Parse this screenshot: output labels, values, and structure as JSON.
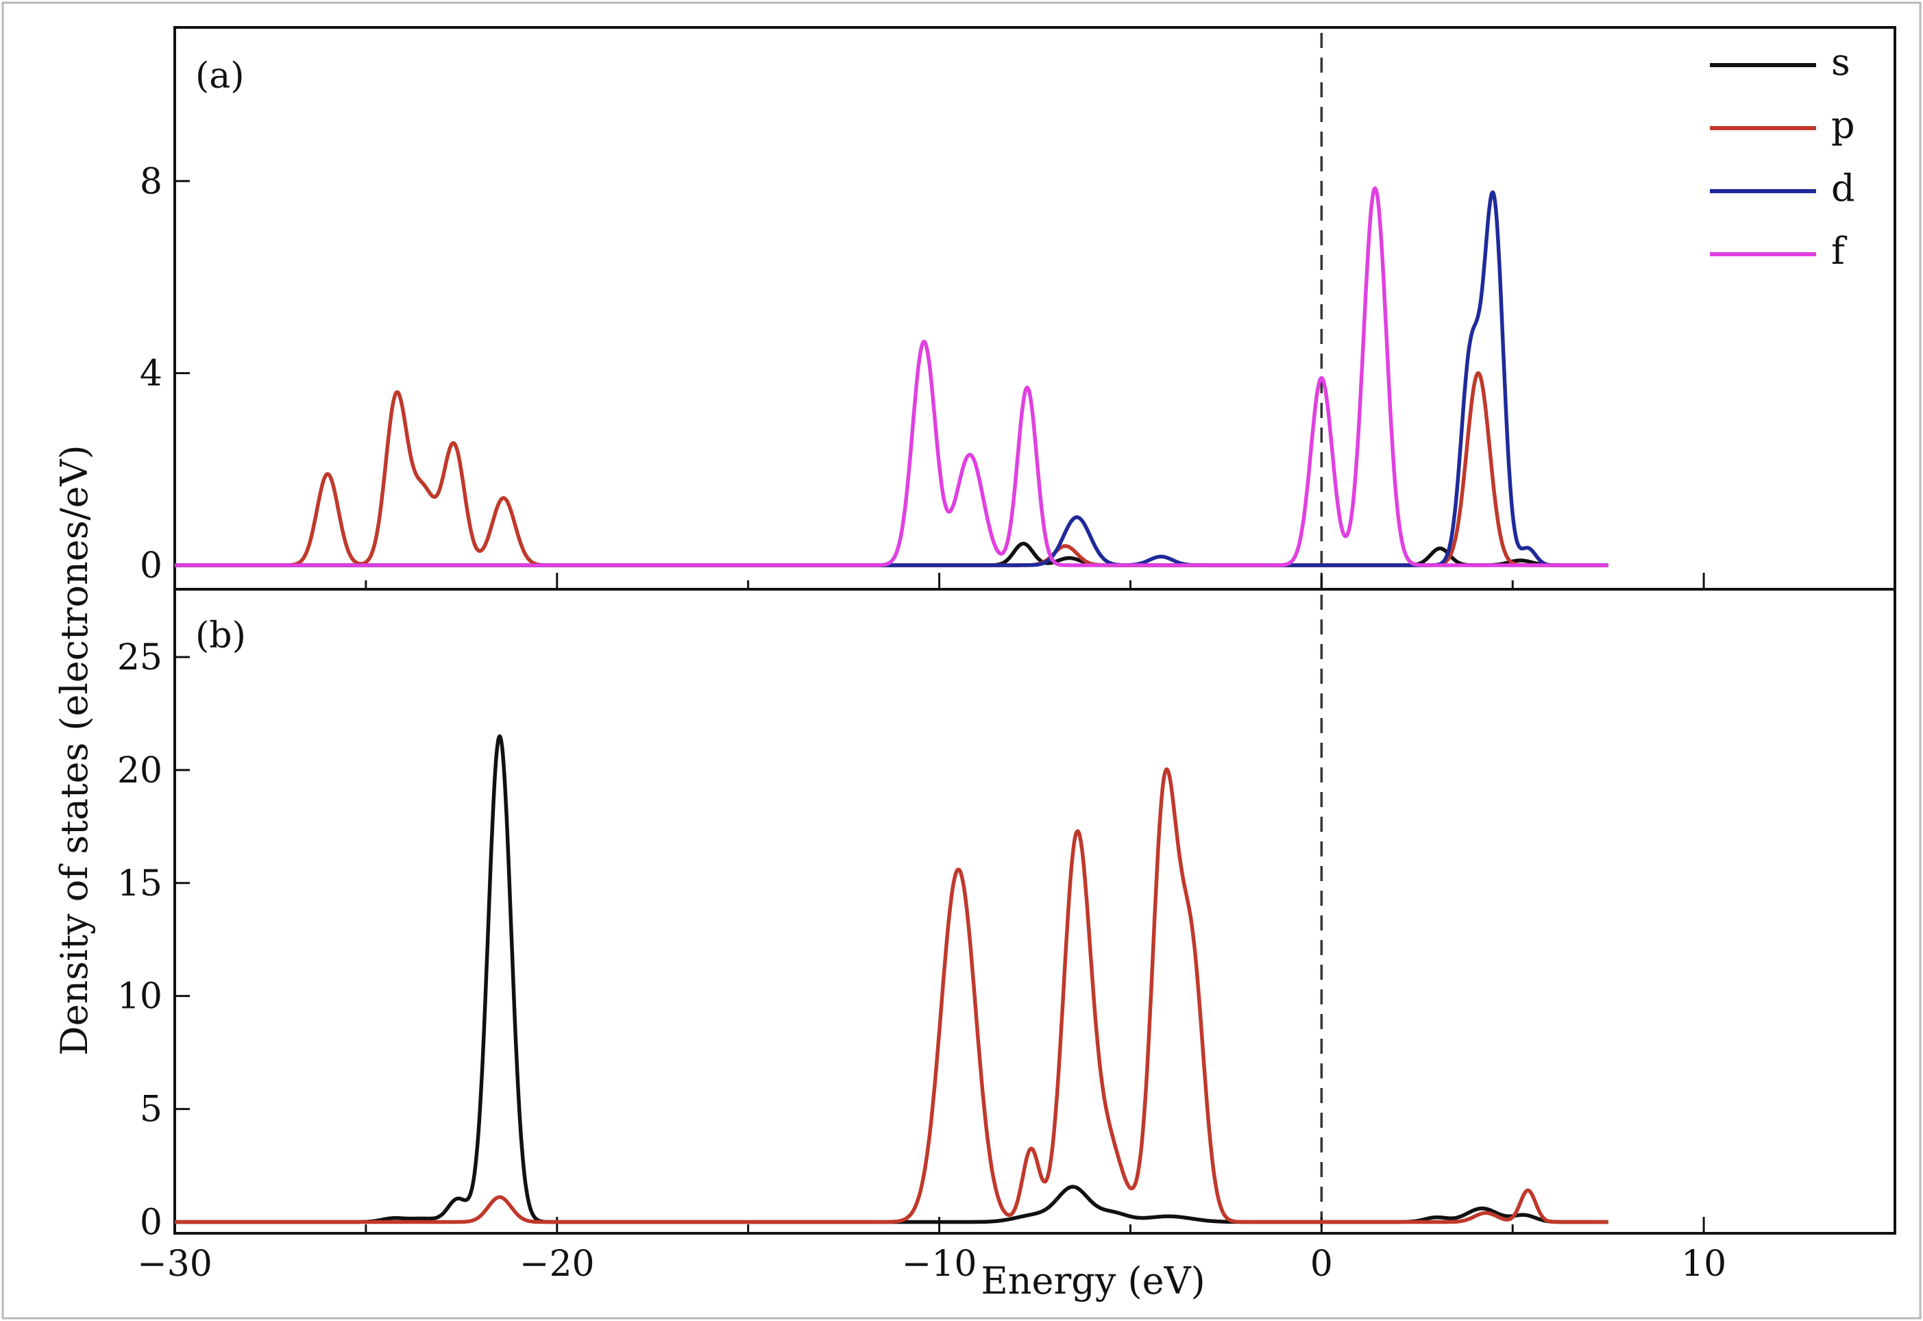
{
  "chart_data": [
    {
      "panel": "(a)",
      "type": "line",
      "xlim": [
        -30,
        15
      ],
      "ylim": [
        -0.5,
        11.2
      ],
      "xticks": [
        -30,
        -20,
        -10,
        0,
        10
      ],
      "yticks": [
        0,
        4,
        8
      ],
      "ytick_labels": [
        "0",
        "4",
        "8"
      ],
      "fermi_level": 0,
      "legend": {
        "placement": "top-right",
        "entries": [
          "s",
          "p",
          "d",
          "f"
        ]
      },
      "series": [
        {
          "name": "s",
          "color": "#111111",
          "peaks": [
            {
              "x": -7.8,
              "y": 0.45,
              "w": 0.25
            },
            {
              "x": -6.6,
              "y": 0.15,
              "w": 0.3
            },
            {
              "x": 3.1,
              "y": 0.35,
              "w": 0.25
            },
            {
              "x": 5.2,
              "y": 0.1,
              "w": 0.3
            }
          ]
        },
        {
          "name": "p",
          "color": "#c0392b",
          "peaks": [
            {
              "x": -26.0,
              "y": 1.9,
              "w": 0.28
            },
            {
              "x": -24.2,
              "y": 3.5,
              "w": 0.28
            },
            {
              "x": -23.5,
              "y": 1.5,
              "w": 0.3
            },
            {
              "x": -22.7,
              "y": 2.5,
              "w": 0.28
            },
            {
              "x": -21.4,
              "y": 1.4,
              "w": 0.3
            },
            {
              "x": -6.7,
              "y": 0.4,
              "w": 0.3
            },
            {
              "x": 4.1,
              "y": 4.0,
              "w": 0.3
            }
          ]
        },
        {
          "name": "d",
          "color": "#1f2a9a",
          "peaks": [
            {
              "x": -6.4,
              "y": 1.0,
              "w": 0.35
            },
            {
              "x": -4.2,
              "y": 0.18,
              "w": 0.3
            },
            {
              "x": 3.9,
              "y": 4.3,
              "w": 0.25
            },
            {
              "x": 4.5,
              "y": 7.5,
              "w": 0.25
            },
            {
              "x": 5.4,
              "y": 0.35,
              "w": 0.2
            }
          ]
        },
        {
          "name": "f",
          "color": "#e040e0",
          "peaks": [
            {
              "x": -10.4,
              "y": 4.65,
              "w": 0.3
            },
            {
              "x": -9.2,
              "y": 2.3,
              "w": 0.35
            },
            {
              "x": -7.7,
              "y": 3.7,
              "w": 0.25
            },
            {
              "x": 0.0,
              "y": 3.9,
              "w": 0.28
            },
            {
              "x": 1.4,
              "y": 7.85,
              "w": 0.3
            }
          ]
        }
      ]
    },
    {
      "panel": "(b)",
      "type": "line",
      "xlim": [
        -30,
        15
      ],
      "ylim": [
        -0.5,
        28
      ],
      "xticks": [
        -30,
        -20,
        -10,
        0,
        10
      ],
      "xtick_labels": [
        "−30",
        "−20",
        "−10",
        "0",
        "10"
      ],
      "yticks": [
        0,
        5,
        10,
        15,
        20,
        25
      ],
      "ytick_labels": [
        "0",
        "5",
        "10",
        "15",
        "20",
        "25"
      ],
      "fermi_level": 0,
      "series": [
        {
          "name": "s",
          "color": "#111111",
          "peaks": [
            {
              "x": -21.5,
              "y": 21.5,
              "w": 0.3
            },
            {
              "x": -22.6,
              "y": 1.0,
              "w": 0.25
            },
            {
              "x": -23.5,
              "y": 0.15,
              "w": 0.4
            },
            {
              "x": -24.3,
              "y": 0.15,
              "w": 0.3
            },
            {
              "x": -6.5,
              "y": 1.5,
              "w": 0.4
            },
            {
              "x": -7.5,
              "y": 0.3,
              "w": 0.5
            },
            {
              "x": -5.5,
              "y": 0.4,
              "w": 0.4
            },
            {
              "x": -4.0,
              "y": 0.25,
              "w": 0.6
            },
            {
              "x": 3.0,
              "y": 0.2,
              "w": 0.3
            },
            {
              "x": 4.2,
              "y": 0.6,
              "w": 0.4
            },
            {
              "x": 5.3,
              "y": 0.3,
              "w": 0.3
            }
          ]
        },
        {
          "name": "p",
          "color": "#c0392b",
          "peaks": [
            {
              "x": -21.5,
              "y": 1.1,
              "w": 0.3
            },
            {
              "x": -9.5,
              "y": 15.6,
              "w": 0.45
            },
            {
              "x": -7.6,
              "y": 3.2,
              "w": 0.22
            },
            {
              "x": -6.4,
              "y": 16.8,
              "w": 0.35
            },
            {
              "x": -5.6,
              "y": 3.5,
              "w": 0.4
            },
            {
              "x": -4.1,
              "y": 18.8,
              "w": 0.32
            },
            {
              "x": -3.4,
              "y": 11.5,
              "w": 0.32
            },
            {
              "x": 4.3,
              "y": 0.4,
              "w": 0.3
            },
            {
              "x": 5.4,
              "y": 1.4,
              "w": 0.2
            }
          ]
        }
      ]
    }
  ],
  "xlabel": "Energy (eV)",
  "ylabel": "Density of states (electrones/eV)",
  "panel_tags": [
    "(a)",
    "(b)"
  ]
}
